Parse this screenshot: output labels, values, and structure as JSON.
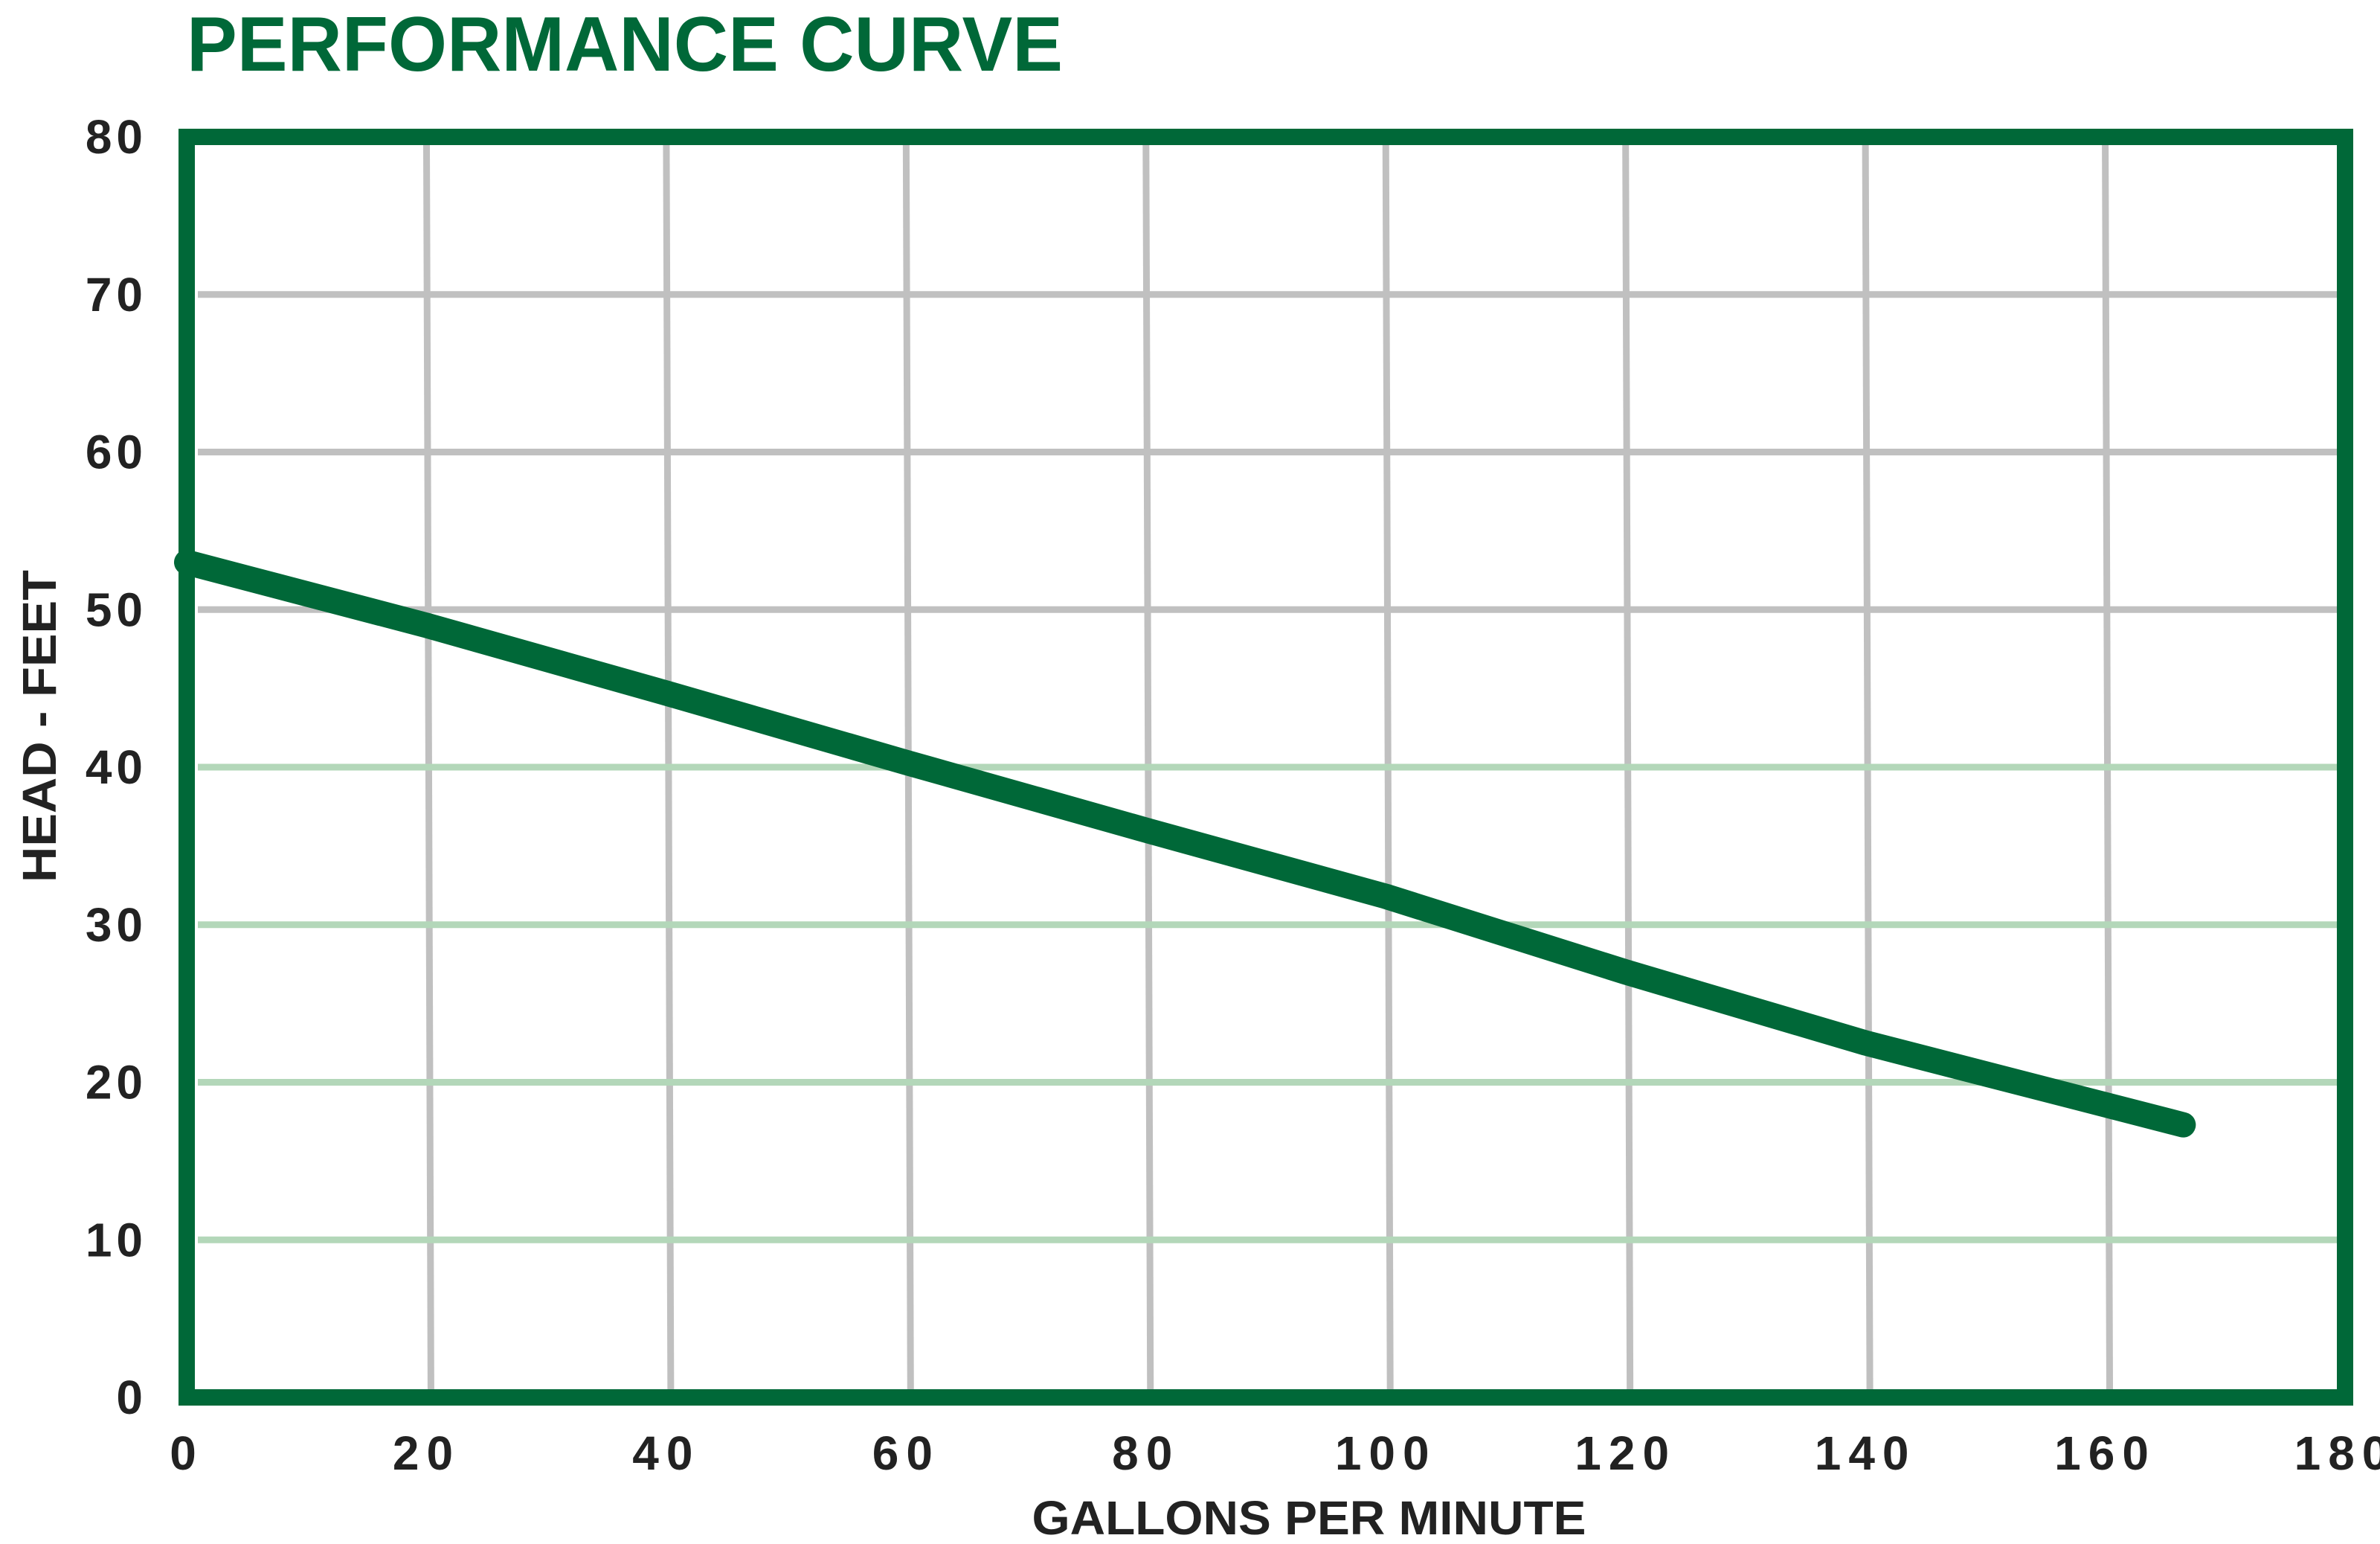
{
  "chart_data": {
    "type": "line",
    "title": "PERFORMANCE CURVE",
    "xlabel": "GALLONS PER MINUTE",
    "ylabel": "HEAD - FEET",
    "xlim": [
      0,
      180
    ],
    "ylim": [
      0,
      80
    ],
    "x_ticks": [
      0,
      20,
      40,
      60,
      80,
      100,
      120,
      140,
      160,
      180
    ],
    "y_ticks": [
      0,
      10,
      20,
      30,
      40,
      50,
      60,
      70,
      80
    ],
    "grid": true,
    "series": [
      {
        "name": "Performance curve",
        "x": [
          0,
          20,
          40,
          60,
          80,
          100,
          120,
          140,
          166.5
        ],
        "y": [
          53,
          49,
          44.7,
          40.3,
          36,
          31.8,
          27,
          22.5,
          17.3
        ]
      }
    ],
    "colors": {
      "accent": "#006838",
      "grid_gray": "#c0c0c0",
      "grid_green": "#b3d7b9",
      "text": "#222222"
    }
  }
}
